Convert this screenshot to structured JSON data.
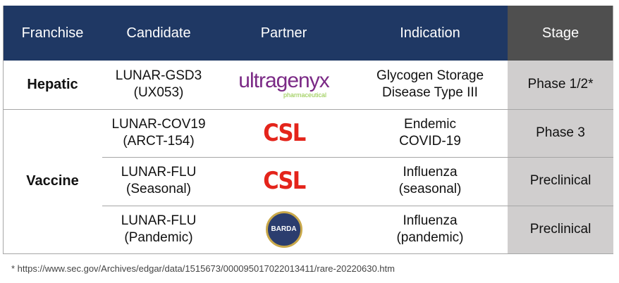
{
  "table": {
    "header": [
      "Franchise",
      "Candidate",
      "Partner",
      "Indication",
      "Stage"
    ],
    "groups": [
      {
        "franchise": "Hepatic",
        "rows": [
          {
            "candidate": [
              "LUNAR-GSD3",
              "(UX053)"
            ],
            "partner": {
              "name": "ultragenyx",
              "sub": "pharmaceutical"
            },
            "indication": [
              "Glycogen Storage",
              "Disease Type III"
            ],
            "stage": "Phase 1/2*"
          }
        ]
      },
      {
        "franchise": "Vaccine",
        "rows": [
          {
            "candidate": [
              "LUNAR-COV19",
              "(ARCT-154)"
            ],
            "partner": {
              "name": "CSL"
            },
            "indication": [
              "Endemic",
              "COVID-19"
            ],
            "stage": "Phase 3"
          },
          {
            "candidate": [
              "LUNAR-FLU",
              "(Seasonal)"
            ],
            "partner": {
              "name": "CSL"
            },
            "indication": [
              "Influenza",
              "(seasonal)"
            ],
            "stage": "Preclinical"
          },
          {
            "candidate": [
              "LUNAR-FLU",
              "(Pandemic)"
            ],
            "partner": {
              "name": "BARDA"
            },
            "indication": [
              "Influenza",
              "(pandemic)"
            ],
            "stage": "Preclinical"
          }
        ]
      }
    ]
  },
  "footnote": "* https://www.sec.gov/Archives/edgar/data/1515673/000095017022013411/rare-20220630.htm"
}
